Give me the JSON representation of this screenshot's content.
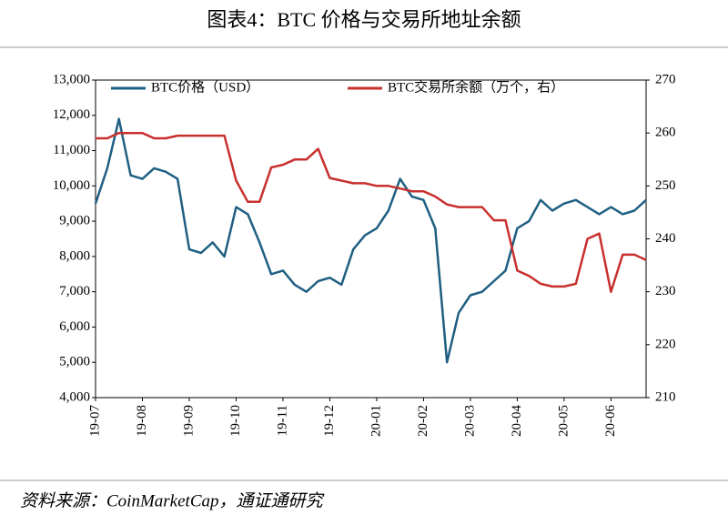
{
  "chart_data": {
    "type": "line",
    "title": "图表4：BTC 价格与交易所地址余额",
    "source": "资料来源：CoinMarketCap，通证通研究",
    "categories": [
      "19-07",
      null,
      null,
      null,
      "19-08",
      null,
      null,
      null,
      "19-09",
      null,
      null,
      null,
      "19-10",
      null,
      null,
      null,
      "19-11",
      null,
      null,
      null,
      "19-12",
      null,
      null,
      null,
      "20-01",
      null,
      null,
      null,
      "20-02",
      null,
      null,
      null,
      "20-03",
      null,
      null,
      null,
      "20-04",
      null,
      null,
      null,
      "20-05",
      null,
      null,
      null,
      "20-06",
      null,
      null,
      null
    ],
    "series": [
      {
        "name": "BTC价格（USD）",
        "color": "#1f5f82",
        "values": [
          9500,
          10500,
          11900,
          10300,
          10200,
          10500,
          10400,
          10200,
          8200,
          8100,
          8400,
          8000,
          9400,
          9200,
          8400,
          7500,
          7600,
          7200,
          7000,
          7300,
          7400,
          7200,
          8200,
          8600,
          8800,
          9300,
          10200,
          9700,
          9600,
          8800,
          5000,
          6400,
          6900,
          7000,
          7300,
          7600,
          8800,
          9000,
          9600,
          9300,
          9500,
          9600,
          9400,
          9200,
          9400,
          9200,
          9300,
          9600
        ]
      },
      {
        "name": "BTC交易所余额（万个，右）",
        "color": "#c8302e",
        "axis": "y2",
        "values": [
          259,
          259,
          260,
          260,
          260,
          259,
          259,
          259.5,
          259.5,
          259.5,
          259.5,
          259.5,
          251,
          247,
          247,
          253.5,
          254,
          255,
          255,
          257,
          251.5,
          251,
          250.5,
          250.5,
          250,
          250,
          249.5,
          249,
          249,
          248,
          246.5,
          246,
          246,
          246,
          243.5,
          243.5,
          234,
          233,
          231.5,
          231,
          231,
          231.5,
          240,
          241,
          230,
          237,
          237,
          236
        ]
      }
    ],
    "ylim": [
      4000,
      13000
    ],
    "yticks": [
      {
        "value": 4000,
        "label": "4,000"
      },
      {
        "value": 5000,
        "label": "5,000"
      },
      {
        "value": 6000,
        "label": "6,000"
      },
      {
        "value": 7000,
        "label": "7,000"
      },
      {
        "value": 8000,
        "label": "8,000"
      },
      {
        "value": 9000,
        "label": "9,000"
      },
      {
        "value": 10000,
        "label": "10,000"
      },
      {
        "value": 11000,
        "label": "11,000"
      },
      {
        "value": 12000,
        "label": "12,000"
      },
      {
        "value": 13000,
        "label": "13,000"
      }
    ],
    "y2lim": [
      210,
      270
    ],
    "y2ticks": [
      210,
      220,
      230,
      240,
      250,
      260,
      270
    ],
    "legend": "top"
  }
}
